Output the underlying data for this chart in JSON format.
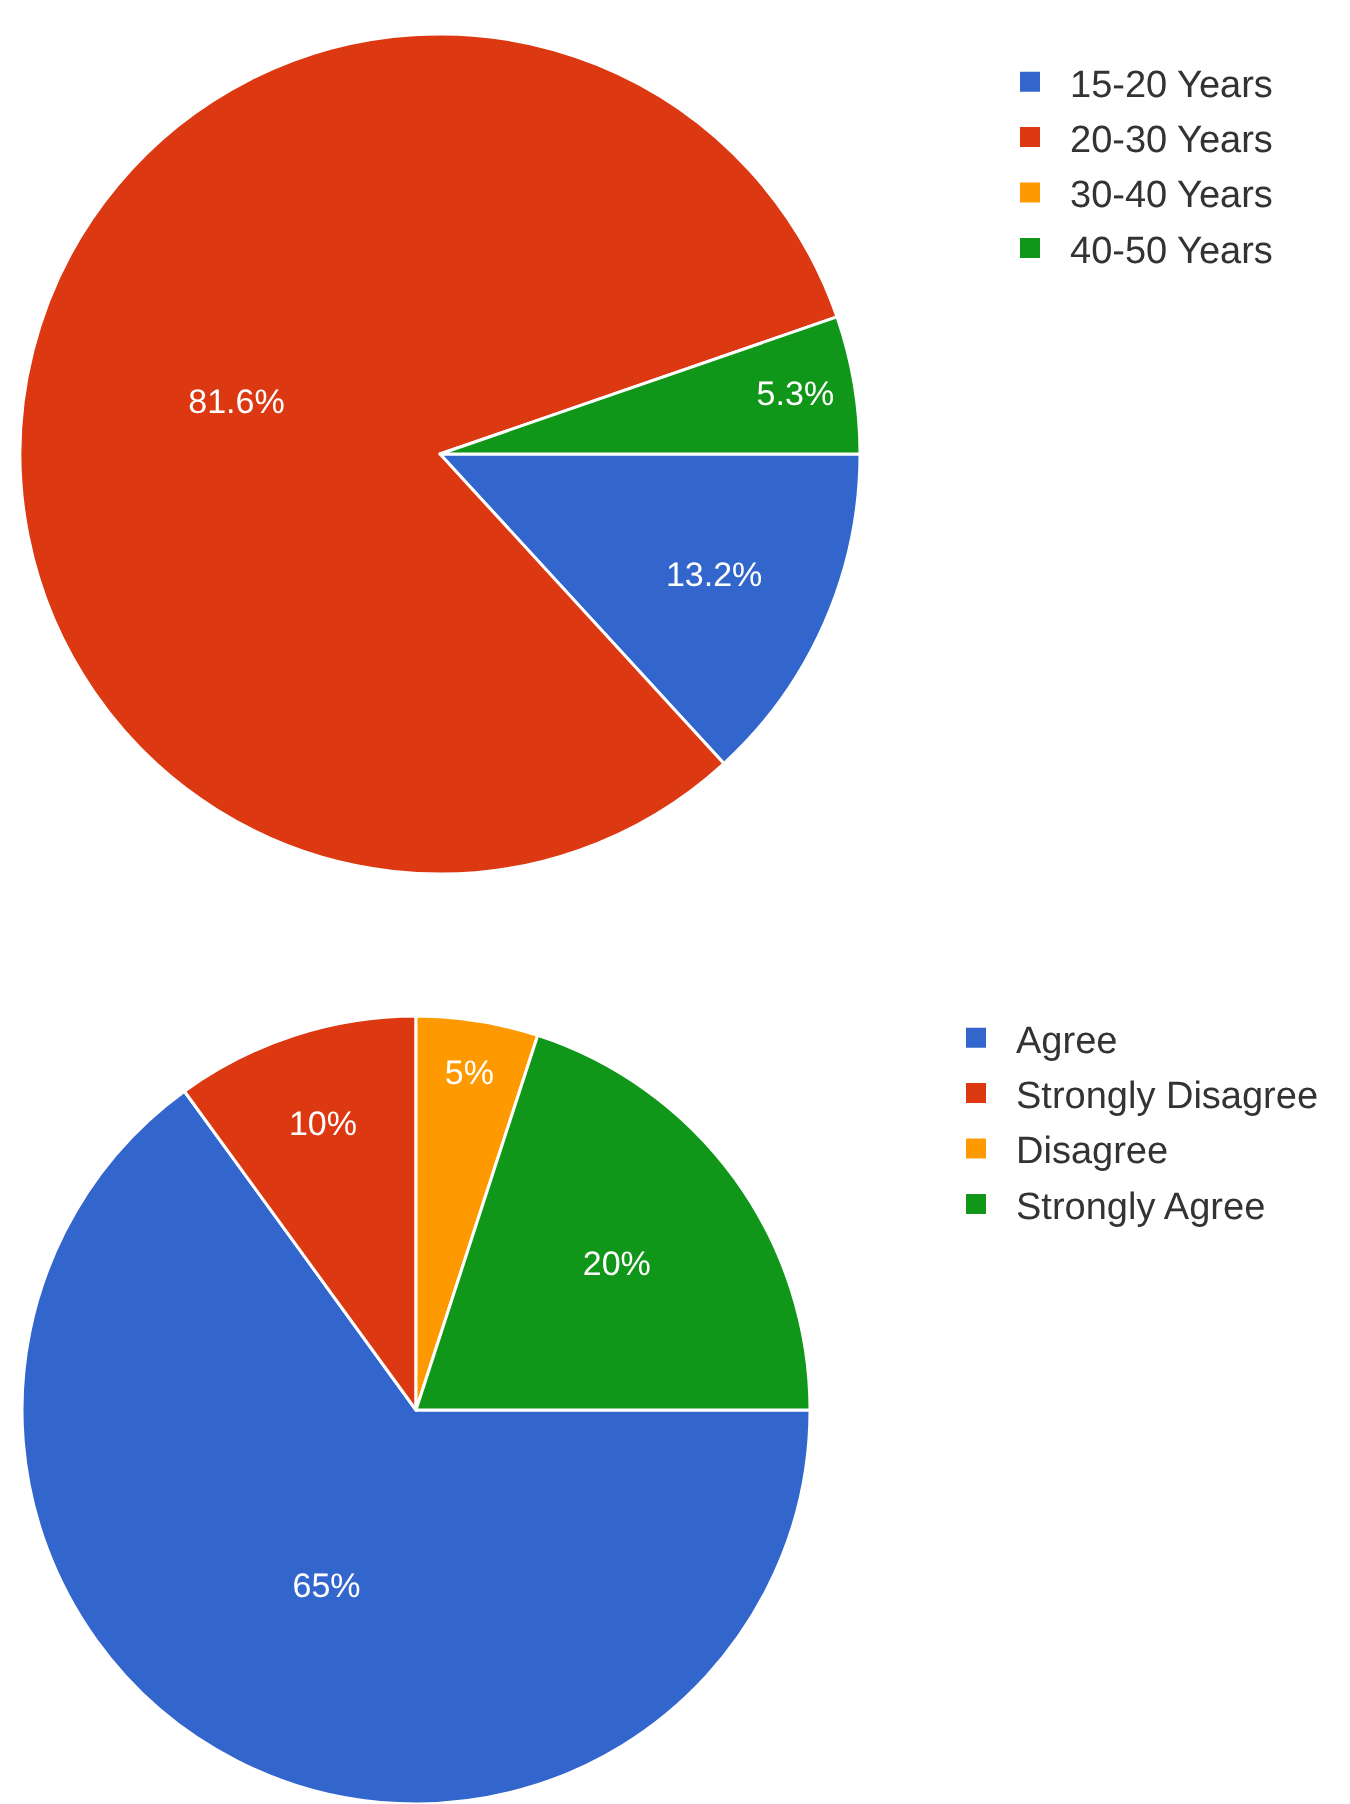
{
  "chart_data": [
    {
      "type": "pie",
      "categories": [
        "15-20 Years",
        "20-30 Years",
        "30-40 Years",
        "40-50 Years"
      ],
      "values": [
        13.2,
        81.6,
        0,
        5.3
      ],
      "colors": [
        "#3366cc",
        "#dc3912",
        "#ff9900",
        "#109618"
      ],
      "value_labels": [
        "13.2%",
        "81.6%",
        null,
        "5.3%"
      ],
      "legend": "top right"
    },
    {
      "type": "pie",
      "categories": [
        "Agree",
        "Strongly Disagree",
        "Disagree",
        "Strongly Agree"
      ],
      "values": [
        65,
        10,
        5,
        20
      ],
      "colors": [
        "#3366cc",
        "#dc3912",
        "#ff9900",
        "#109618"
      ],
      "value_labels": [
        "65%",
        "10%",
        "5%",
        "20%"
      ],
      "legend": "top right"
    }
  ]
}
